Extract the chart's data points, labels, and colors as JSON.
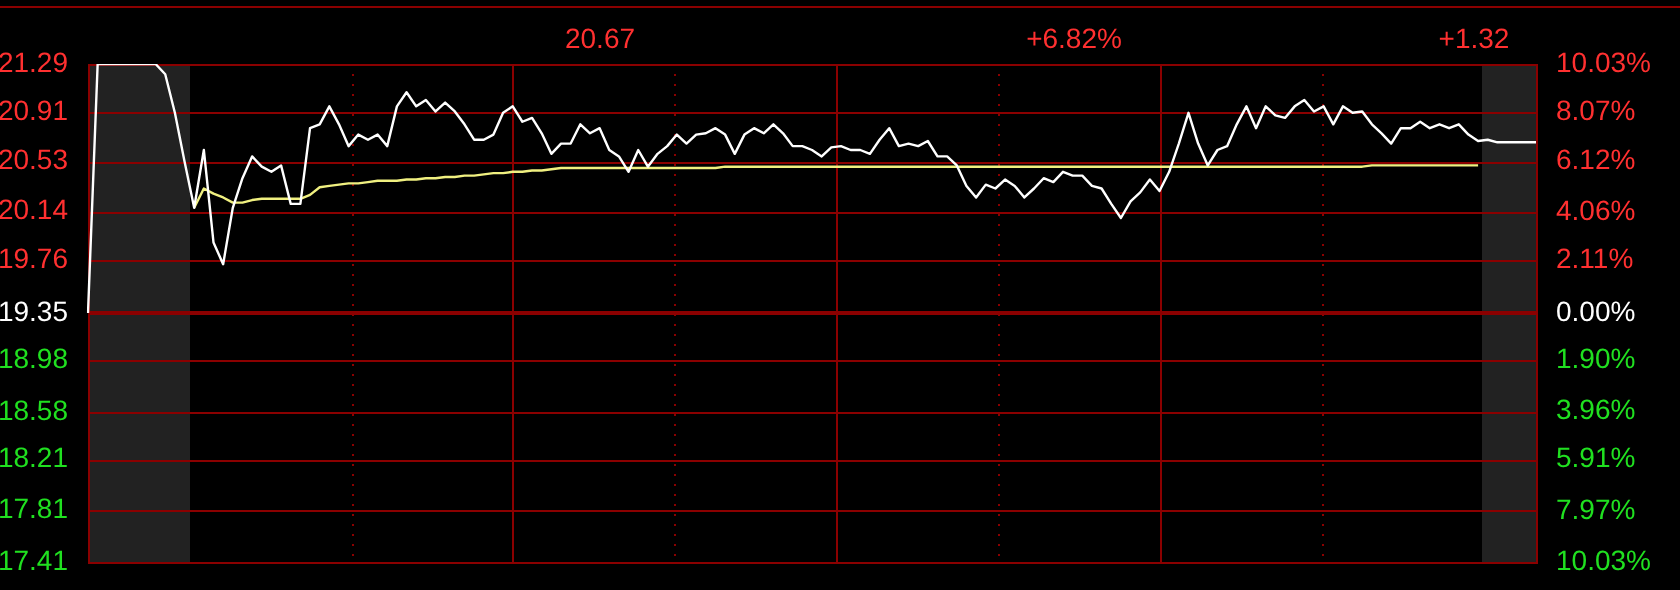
{
  "chart_data": {
    "type": "line",
    "annotations": [
      "20.67",
      "+6.82%",
      "+1.32"
    ],
    "categories": [
      null,
      null,
      null,
      null,
      null,
      null,
      null,
      null,
      null,
      null,
      null,
      null,
      null,
      null,
      null,
      null,
      null,
      null,
      null,
      null,
      null,
      null,
      null,
      null,
      null,
      null,
      null,
      null,
      null,
      null,
      null,
      null,
      null,
      null,
      null,
      null,
      null,
      null,
      null,
      null,
      null,
      null,
      null,
      null,
      null,
      null,
      null,
      null,
      null,
      null,
      null,
      null,
      null,
      null,
      null,
      null,
      null,
      null,
      null,
      null,
      null,
      null,
      null,
      null,
      null,
      null,
      null,
      null,
      null,
      null,
      null,
      null,
      null,
      null,
      null,
      null,
      null,
      null,
      null,
      null,
      null,
      null,
      null,
      null,
      null,
      null,
      null,
      null,
      null,
      null,
      null,
      null,
      null,
      null,
      null,
      null,
      null,
      null,
      null,
      null,
      null,
      null,
      null,
      null,
      null,
      null,
      null,
      null,
      null,
      null,
      null,
      null,
      null,
      null,
      null,
      null,
      null,
      null,
      null,
      null,
      null,
      null,
      null,
      null,
      null,
      null,
      null,
      null,
      null,
      null,
      null,
      null,
      null,
      null,
      null,
      null,
      null,
      null,
      null,
      null,
      null,
      null,
      null,
      null,
      null,
      null,
      null,
      null,
      null,
      null,
      null
    ],
    "ylim": [
      17.41,
      21.29
    ],
    "yticks": [
      17.41,
      17.81,
      18.21,
      18.58,
      18.98,
      19.35,
      19.76,
      20.14,
      20.53,
      20.91,
      21.29
    ],
    "y2lim": [
      -10.03,
      10.03
    ],
    "y2ticks": [
      {
        "value": -10.03,
        "label": "10.03%"
      },
      {
        "value": -7.97,
        "label": "7.97%"
      },
      {
        "value": -5.91,
        "label": "5.91%"
      },
      {
        "value": -3.96,
        "label": "3.96%"
      },
      {
        "value": -1.9,
        "label": "1.90%"
      },
      {
        "value": 0,
        "label": "0.00%"
      },
      {
        "value": 2.11,
        "label": "2.11%"
      },
      {
        "value": 4.06,
        "label": "4.06%"
      },
      {
        "value": 6.12,
        "label": "6.12%"
      },
      {
        "value": 8.07,
        "label": "8.07%"
      },
      {
        "value": 10.03,
        "label": "10.03%"
      }
    ],
    "grid": true,
    "legend": false,
    "line_style": "solid",
    "ref_lines": [
      {
        "axis": "y",
        "value": 19.35,
        "color": "#8b0000"
      }
    ],
    "series": [
      {
        "color": "#ffffff",
        "values": [
          19.35,
          21.29,
          21.29,
          21.29,
          21.29,
          21.29,
          21.29,
          21.29,
          21.21,
          20.91,
          20.53,
          20.17,
          20.62,
          19.9,
          19.73,
          20.17,
          20.4,
          20.57,
          20.49,
          20.45,
          20.5,
          20.2,
          20.2,
          20.79,
          20.82,
          20.96,
          20.82,
          20.65,
          20.74,
          20.7,
          20.74,
          20.65,
          20.96,
          21.07,
          20.96,
          21.01,
          20.92,
          20.99,
          20.92,
          20.82,
          20.7,
          20.7,
          20.74,
          20.91,
          20.96,
          20.84,
          20.87,
          20.75,
          20.59,
          20.67,
          20.67,
          20.82,
          20.75,
          20.79,
          20.62,
          20.57,
          20.45,
          20.62,
          20.49,
          20.59,
          20.65,
          20.74,
          20.67,
          20.74,
          20.75,
          20.79,
          20.74,
          20.59,
          20.74,
          20.79,
          20.75,
          20.82,
          20.75,
          20.65,
          20.65,
          20.62,
          20.57,
          20.64,
          20.65,
          20.62,
          20.62,
          20.59,
          20.7,
          20.79,
          20.65,
          20.67,
          20.65,
          20.69,
          20.57,
          20.57,
          20.5,
          20.34,
          20.25,
          20.35,
          20.32,
          20.39,
          20.34,
          20.25,
          20.32,
          20.4,
          20.37,
          20.45,
          20.42,
          20.42,
          20.34,
          20.32,
          20.2,
          20.09,
          20.22,
          20.29,
          20.39,
          20.3,
          20.45,
          20.67,
          20.91,
          20.67,
          20.5,
          20.62,
          20.65,
          20.82,
          20.96,
          20.79,
          20.96,
          20.89,
          20.87,
          20.96,
          21.01,
          20.92,
          20.96,
          20.82,
          20.96,
          20.91,
          20.92,
          20.82,
          20.75,
          20.67,
          20.79,
          20.79,
          20.84,
          20.79,
          20.82,
          20.79,
          20.82,
          20.74,
          20.69,
          20.7,
          20.68,
          20.68,
          20.68,
          20.68,
          20.68
        ]
      },
      {
        "color": "#f0f080",
        "values": [
          null,
          null,
          null,
          null,
          null,
          null,
          null,
          null,
          null,
          null,
          null,
          20.17,
          20.32,
          20.28,
          20.25,
          20.21,
          20.21,
          20.23,
          20.24,
          20.24,
          20.24,
          20.24,
          20.24,
          20.27,
          20.33,
          20.34,
          20.35,
          20.36,
          20.36,
          20.37,
          20.38,
          20.38,
          20.38,
          20.39,
          20.39,
          20.4,
          20.4,
          20.41,
          20.41,
          20.42,
          20.42,
          20.43,
          20.44,
          20.44,
          20.45,
          20.45,
          20.46,
          20.46,
          20.47,
          20.48,
          20.48,
          20.48,
          20.48,
          20.48,
          20.48,
          20.48,
          20.48,
          20.48,
          20.48,
          20.48,
          20.48,
          20.48,
          20.48,
          20.48,
          20.48,
          20.48,
          20.49,
          20.49,
          20.49,
          20.49,
          20.49,
          20.49,
          20.49,
          20.49,
          20.49,
          20.49,
          20.49,
          20.49,
          20.49,
          20.49,
          20.49,
          20.49,
          20.49,
          20.49,
          20.49,
          20.49,
          20.49,
          20.49,
          20.49,
          20.49,
          20.49,
          20.49,
          20.49,
          20.49,
          20.49,
          20.49,
          20.49,
          20.49,
          20.49,
          20.49,
          20.49,
          20.49,
          20.49,
          20.49,
          20.49,
          20.49,
          20.49,
          20.49,
          20.49,
          20.49,
          20.49,
          20.49,
          20.49,
          20.49,
          20.49,
          20.49,
          20.49,
          20.49,
          20.49,
          20.49,
          20.49,
          20.49,
          20.49,
          20.49,
          20.49,
          20.49,
          20.49,
          20.49,
          20.49,
          20.49,
          20.49,
          20.49,
          20.49,
          20.5,
          20.5,
          20.5,
          20.5,
          20.5,
          20.5,
          20.5,
          20.5,
          20.5,
          20.5,
          20.5,
          20.5,
          null,
          null,
          null,
          null,
          null,
          null
        ]
      }
    ]
  }
}
